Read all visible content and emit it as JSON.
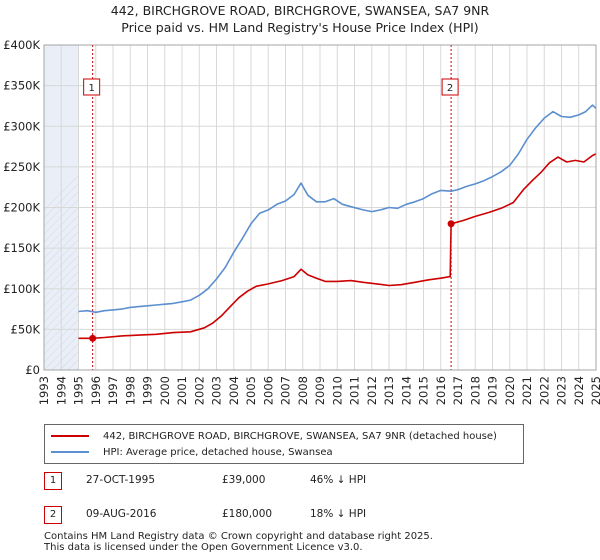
{
  "title_line1": "442, BIRCHGROVE ROAD, BIRCHGROVE, SWANSEA, SA7 9NR",
  "title_line2": "Price paid vs. HM Land Registry's House Price Index (HPI)",
  "colors": {
    "property": "#cc0000",
    "hpi": "#5b8fcf",
    "grid": "#d8d8d8",
    "shade": "#e9eef7",
    "marker_border": "#cc0000"
  },
  "chart_data": {
    "type": "line",
    "ylim": [
      0,
      400000
    ],
    "xlim": [
      1993,
      2025
    ],
    "y_ticks": [
      0,
      50000,
      100000,
      150000,
      200000,
      250000,
      300000,
      350000,
      400000
    ],
    "y_tick_labels": [
      "£0",
      "£50K",
      "£100K",
      "£150K",
      "£200K",
      "£250K",
      "£300K",
      "£350K",
      "£400K"
    ],
    "x_ticks": [
      1993,
      1994,
      1995,
      1996,
      1997,
      1998,
      1999,
      2000,
      2001,
      2002,
      2003,
      2004,
      2005,
      2006,
      2007,
      2008,
      2009,
      2010,
      2011,
      2012,
      2013,
      2014,
      2015,
      2016,
      2017,
      2018,
      2019,
      2020,
      2021,
      2022,
      2023,
      2024,
      2025
    ],
    "series": [
      {
        "name": "442, BIRCHGROVE ROAD, BIRCHGROVE, SWANSEA, SA7 9NR (detached house)",
        "color": "#cc0000",
        "points": [
          [
            1995.0,
            39000
          ],
          [
            1995.82,
            39000
          ],
          [
            1996.5,
            40000
          ],
          [
            1997.5,
            42000
          ],
          [
            1998.5,
            43000
          ],
          [
            1999.5,
            44000
          ],
          [
            2000.5,
            46000
          ],
          [
            2001.5,
            47000
          ],
          [
            2002.3,
            52000
          ],
          [
            2002.8,
            58000
          ],
          [
            2003.3,
            67000
          ],
          [
            2003.8,
            78000
          ],
          [
            2004.3,
            89000
          ],
          [
            2004.8,
            97000
          ],
          [
            2005.3,
            103000
          ],
          [
            2006.0,
            106000
          ],
          [
            2006.8,
            110000
          ],
          [
            2007.5,
            115000
          ],
          [
            2007.9,
            124000
          ],
          [
            2008.3,
            117000
          ],
          [
            2008.8,
            113000
          ],
          [
            2009.3,
            109000
          ],
          [
            2010.0,
            109000
          ],
          [
            2010.8,
            110000
          ],
          [
            2011.5,
            108000
          ],
          [
            2012.3,
            106000
          ],
          [
            2013.0,
            104000
          ],
          [
            2013.7,
            105000
          ],
          [
            2014.5,
            108000
          ],
          [
            2015.3,
            111000
          ],
          [
            2016.0,
            113000
          ],
          [
            2016.55,
            115000
          ],
          [
            2016.6,
            180000
          ],
          [
            2017.3,
            184000
          ],
          [
            2018.0,
            189000
          ],
          [
            2018.8,
            194000
          ],
          [
            2019.5,
            199000
          ],
          [
            2020.2,
            206000
          ],
          [
            2020.8,
            222000
          ],
          [
            2021.3,
            233000
          ],
          [
            2021.8,
            243000
          ],
          [
            2022.3,
            255000
          ],
          [
            2022.8,
            262000
          ],
          [
            2023.3,
            256000
          ],
          [
            2023.8,
            258000
          ],
          [
            2024.3,
            256000
          ],
          [
            2024.8,
            264000
          ],
          [
            2025.0,
            266000
          ]
        ]
      },
      {
        "name": "HPI: Average price, detached house, Swansea",
        "color": "#5b8fcf",
        "points": [
          [
            1995.0,
            72000
          ],
          [
            1995.5,
            73000
          ],
          [
            1996.0,
            71000
          ],
          [
            1996.5,
            73000
          ],
          [
            1997.0,
            74000
          ],
          [
            1997.5,
            75000
          ],
          [
            1998.0,
            77000
          ],
          [
            1998.5,
            78000
          ],
          [
            1999.0,
            79000
          ],
          [
            1999.5,
            80000
          ],
          [
            2000.0,
            81000
          ],
          [
            2000.5,
            82000
          ],
          [
            2001.0,
            84000
          ],
          [
            2001.5,
            86000
          ],
          [
            2002.0,
            92000
          ],
          [
            2002.5,
            100000
          ],
          [
            2003.0,
            112000
          ],
          [
            2003.5,
            126000
          ],
          [
            2004.0,
            145000
          ],
          [
            2004.5,
            162000
          ],
          [
            2005.0,
            180000
          ],
          [
            2005.5,
            193000
          ],
          [
            2006.0,
            197000
          ],
          [
            2006.5,
            204000
          ],
          [
            2007.0,
            208000
          ],
          [
            2007.5,
            216000
          ],
          [
            2007.9,
            230000
          ],
          [
            2008.3,
            215000
          ],
          [
            2008.8,
            207000
          ],
          [
            2009.3,
            207000
          ],
          [
            2009.8,
            211000
          ],
          [
            2010.3,
            204000
          ],
          [
            2010.8,
            201000
          ],
          [
            2011.5,
            197000
          ],
          [
            2012.0,
            195000
          ],
          [
            2012.5,
            197000
          ],
          [
            2013.0,
            200000
          ],
          [
            2013.5,
            199000
          ],
          [
            2014.0,
            204000
          ],
          [
            2014.5,
            207000
          ],
          [
            2015.0,
            211000
          ],
          [
            2015.5,
            217000
          ],
          [
            2016.0,
            221000
          ],
          [
            2016.6,
            220000
          ],
          [
            2017.0,
            222000
          ],
          [
            2017.5,
            226000
          ],
          [
            2018.0,
            229000
          ],
          [
            2018.5,
            233000
          ],
          [
            2019.0,
            238000
          ],
          [
            2019.5,
            244000
          ],
          [
            2020.0,
            252000
          ],
          [
            2020.5,
            266000
          ],
          [
            2021.0,
            284000
          ],
          [
            2021.5,
            298000
          ],
          [
            2022.0,
            310000
          ],
          [
            2022.5,
            318000
          ],
          [
            2023.0,
            312000
          ],
          [
            2023.5,
            311000
          ],
          [
            2024.0,
            314000
          ],
          [
            2024.4,
            318000
          ],
          [
            2024.8,
            326000
          ],
          [
            2025.0,
            322000
          ]
        ]
      }
    ],
    "sale_markers": [
      {
        "label": "1",
        "x": 1995.82,
        "y": 39000
      },
      {
        "label": "2",
        "x": 2016.6,
        "y": 180000
      }
    ]
  },
  "legend": {
    "property": "442, BIRCHGROVE ROAD, BIRCHGROVE, SWANSEA, SA7 9NR (detached house)",
    "hpi": "HPI: Average price, detached house, Swansea"
  },
  "sales": [
    {
      "num": "1",
      "date": "27-OCT-1995",
      "price": "£39,000",
      "hpi": "46% ↓ HPI"
    },
    {
      "num": "2",
      "date": "09-AUG-2016",
      "price": "£180,000",
      "hpi": "18% ↓ HPI"
    }
  ],
  "footer_line1": "Contains HM Land Registry data © Crown copyright and database right 2025.",
  "footer_line2": "This data is licensed under the Open Government Licence v3.0."
}
